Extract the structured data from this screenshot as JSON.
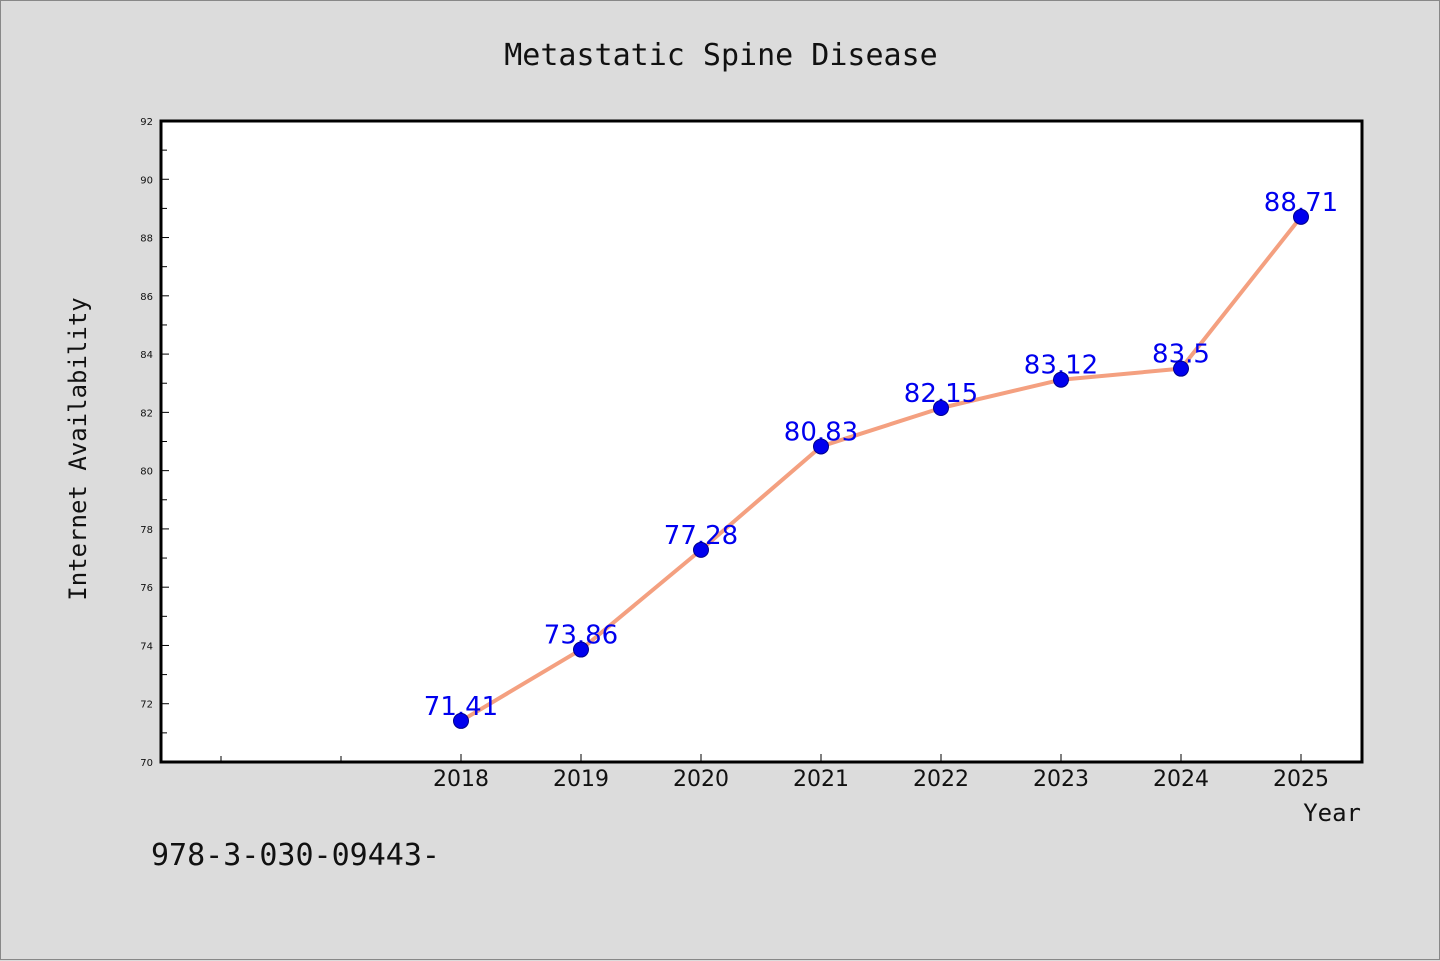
{
  "chart_data": {
    "type": "line",
    "title": "Metastatic Spine Disease",
    "xlabel": "Year",
    "ylabel": "Internet Availability",
    "x": [
      "2018",
      "2019",
      "2020",
      "2021",
      "2022",
      "2023",
      "2024",
      "2025"
    ],
    "y_ticks": [
      "70",
      "72",
      "74",
      "76",
      "78",
      "80",
      "82",
      "84",
      "86",
      "88",
      "90",
      "92"
    ],
    "series": [
      {
        "values": [
          71.41,
          73.86,
          77.28,
          80.83,
          82.15,
          83.12,
          83.5,
          88.71
        ],
        "data_labels": [
          "71.41",
          "73.86",
          "77.28",
          "80.83",
          "82.15",
          "83.12",
          "83.5",
          "88.71"
        ],
        "line_color": "#f4a080",
        "marker_color": "#0000ee"
      }
    ],
    "ylim": [
      70,
      92
    ],
    "grid": false,
    "legend": "none"
  },
  "footer": {
    "text": "978-3-030-09443-"
  }
}
